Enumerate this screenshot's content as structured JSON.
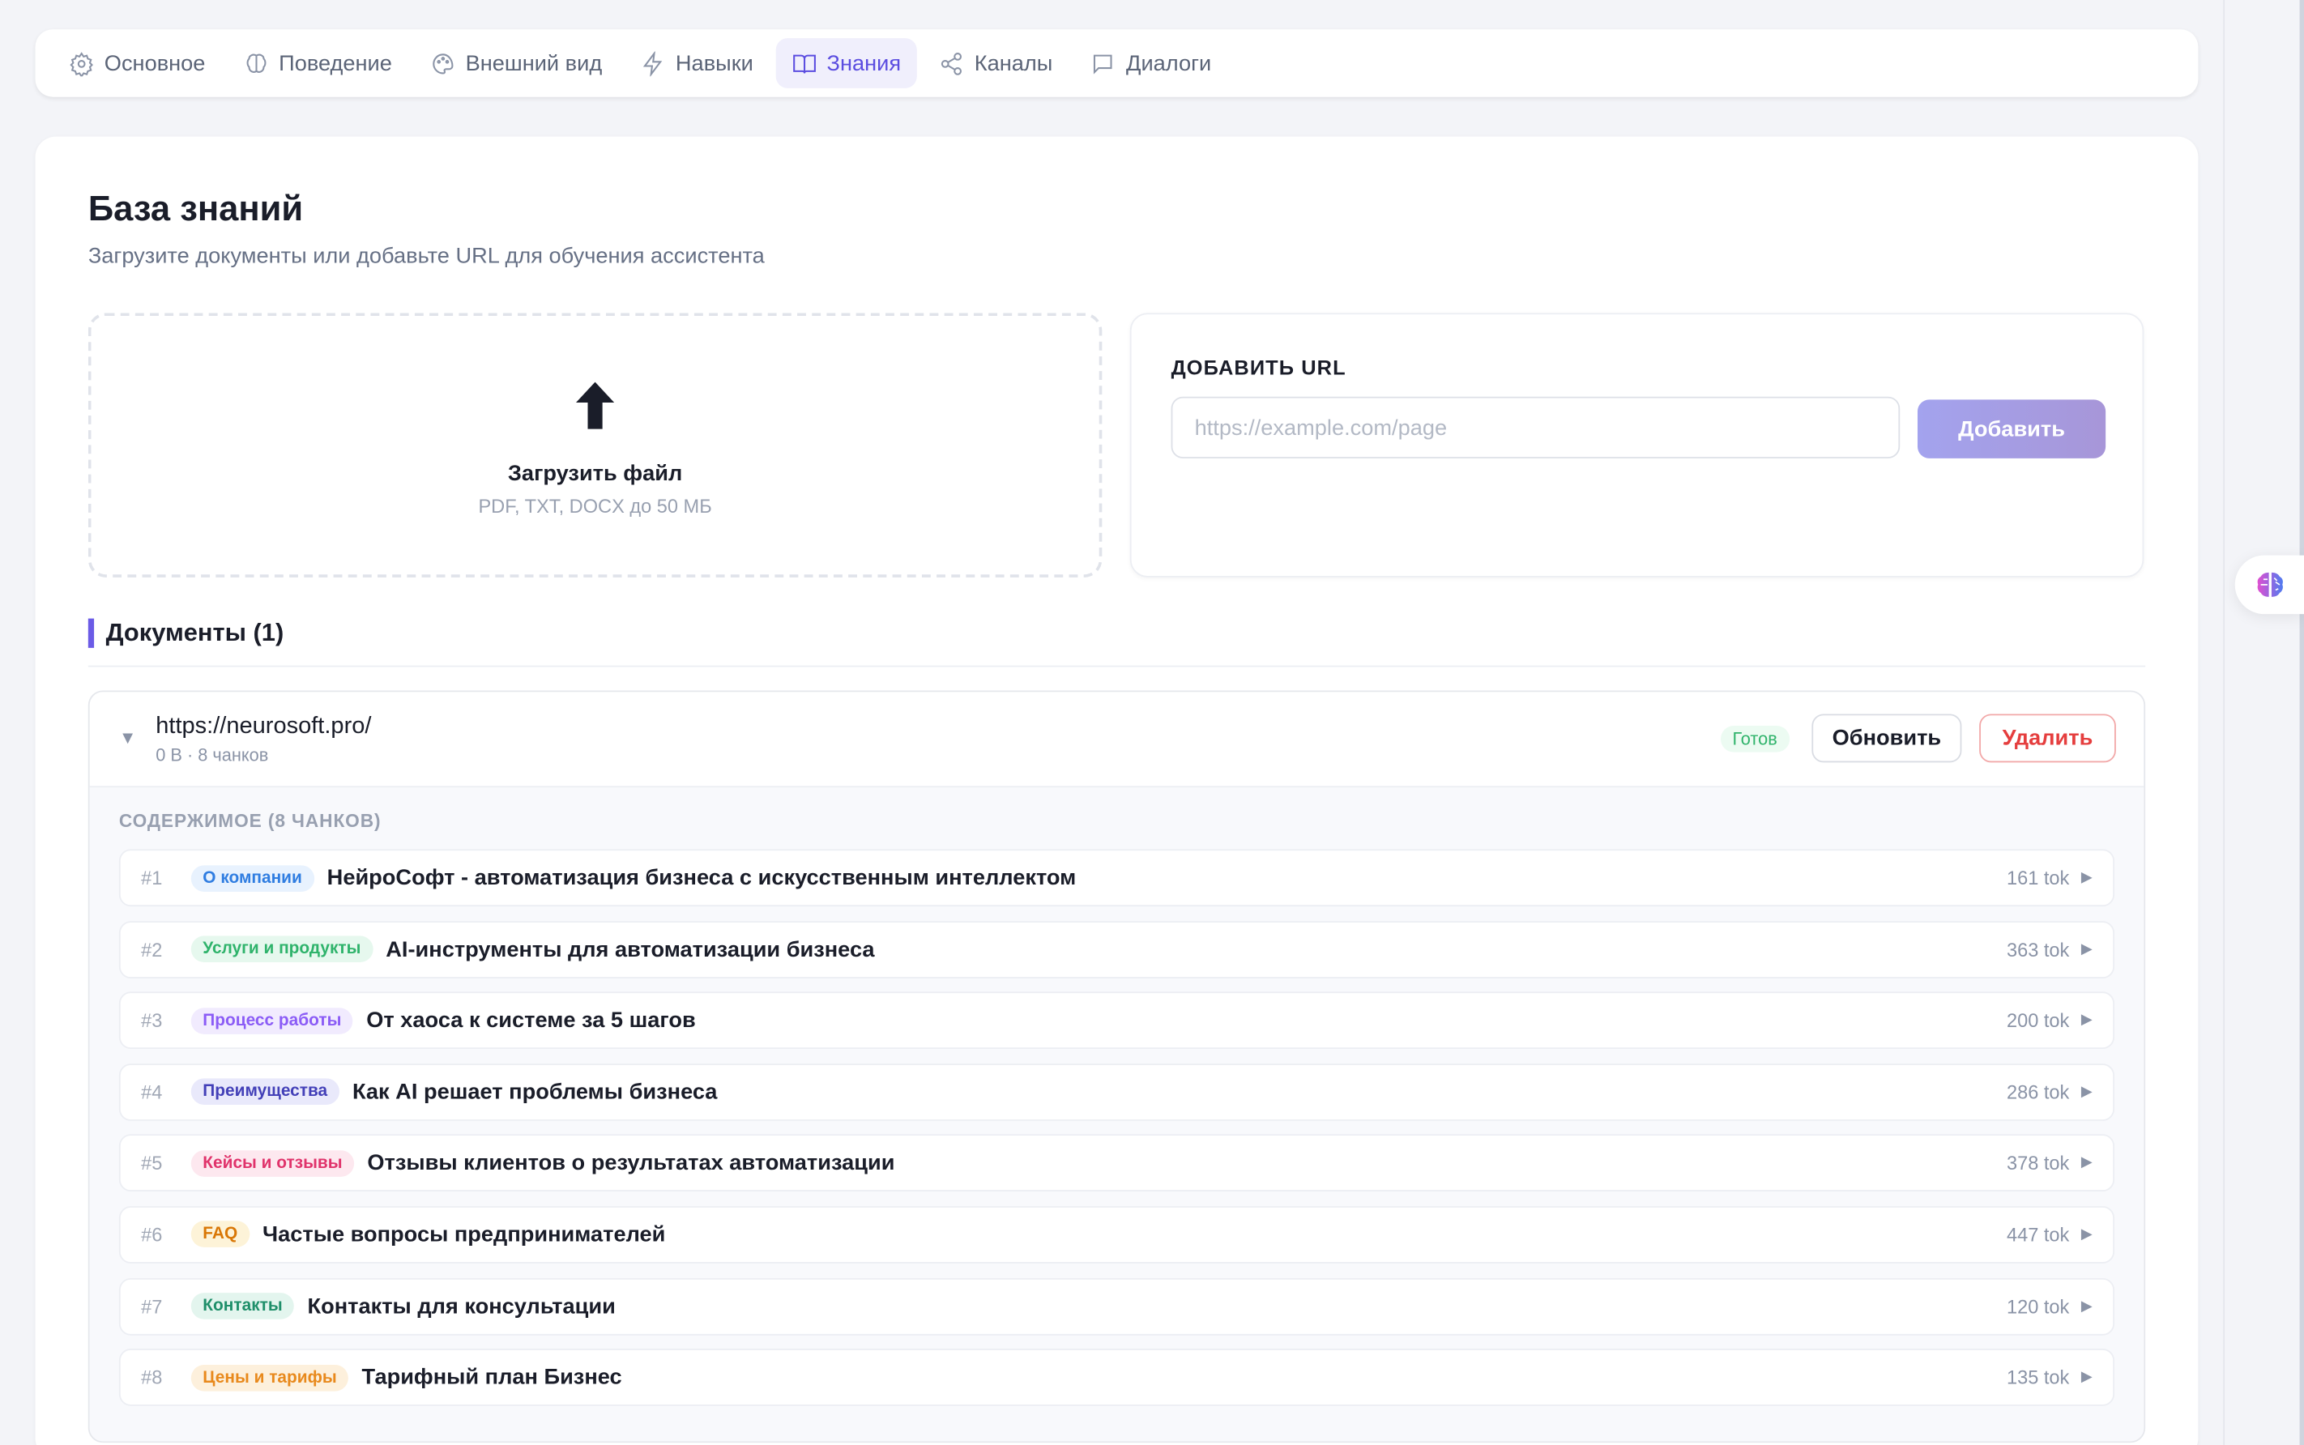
{
  "tabs": [
    {
      "label": "Основное",
      "icon": "gear-icon"
    },
    {
      "label": "Поведение",
      "icon": "brain-icon"
    },
    {
      "label": "Внешний вид",
      "icon": "palette-icon"
    },
    {
      "label": "Навыки",
      "icon": "lightning-icon"
    },
    {
      "label": "Знания",
      "icon": "book-icon",
      "active": true
    },
    {
      "label": "Каналы",
      "icon": "share-icon"
    },
    {
      "label": "Диалоги",
      "icon": "chat-icon"
    }
  ],
  "page": {
    "title": "База знаний",
    "subtitle": "Загрузите документы или добавьте URL для обучения ассистента"
  },
  "upload": {
    "icon": "upload-arrow-icon",
    "title": "Загрузить файл",
    "hint": "PDF, TXT, DOCX до 50 МБ"
  },
  "url": {
    "label": "ДОБАВИТЬ URL",
    "placeholder": "https://example.com/page",
    "value": "",
    "button": "Добавить"
  },
  "documents": {
    "heading": "Документы (1)",
    "items": [
      {
        "url": "https://neurosoft.pro/",
        "meta": "0 B · 8 чанков",
        "status": "Готов",
        "update": "Обновить",
        "delete": "Удалить",
        "content_label": "СОДЕРЖИМОЕ (8 ЧАНКОВ)",
        "chunks": [
          {
            "num": "#1",
            "tag": "О компании",
            "tag_color": "#2f7de1",
            "tag_bg": "#e8f2fe",
            "title": "НейроСофт - автоматизация бизнеса с искусственным интеллектом",
            "tokens": "161 tok"
          },
          {
            "num": "#2",
            "tag": "Услуги и продукты",
            "tag_color": "#2fb36b",
            "tag_bg": "#e6f8ee",
            "title": "AI-инструменты для автоматизации бизнеса",
            "tokens": "363 tok"
          },
          {
            "num": "#3",
            "tag": "Процесс работы",
            "tag_color": "#8b5cf6",
            "tag_bg": "#f1ebfe",
            "title": "От хаоса к системе за 5 шагов",
            "tokens": "200 tok"
          },
          {
            "num": "#4",
            "tag": "Преимущества",
            "tag_color": "#4340b8",
            "tag_bg": "#e9e9fb",
            "title": "Как AI решает проблемы бизнеса",
            "tokens": "286 tok"
          },
          {
            "num": "#5",
            "tag": "Кейсы и отзывы",
            "tag_color": "#e0336b",
            "tag_bg": "#fde8ef",
            "title": "Отзывы клиентов о результатах автоматизации",
            "tokens": "378 tok"
          },
          {
            "num": "#6",
            "tag": "FAQ",
            "tag_color": "#d97706",
            "tag_bg": "#fdf3d8",
            "title": "Частые вопросы предпринимателей",
            "tokens": "447 tok"
          },
          {
            "num": "#7",
            "tag": "Контакты",
            "tag_color": "#1f8f6a",
            "tag_bg": "#e3f5ee",
            "title": "Контакты для консультации",
            "tokens": "120 tok"
          },
          {
            "num": "#8",
            "tag": "Цены и тарифы",
            "tag_color": "#e8891c",
            "tag_bg": "#fdf0dc",
            "title": "Тарифный план Бизнес",
            "tokens": "135 tok"
          }
        ]
      }
    ]
  },
  "fab": {
    "icon": "brain-gradient-icon"
  }
}
